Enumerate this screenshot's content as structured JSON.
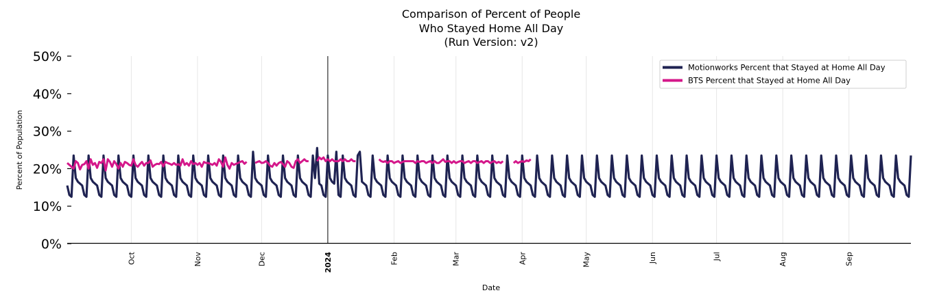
{
  "chart_data": {
    "type": "line",
    "title": "Comparison of Percent of People\nWho Stayed Home All Day\n(Run Version: v2)",
    "xlabel": "Date",
    "ylabel": "Percent of Population",
    "x_range": [
      "2023-09-01",
      "2024-09-30"
    ],
    "ylim": [
      0,
      50
    ],
    "y_ticks": [
      "0%",
      "10%",
      "20%",
      "30%",
      "40%",
      "50%"
    ],
    "x_ticks": [
      {
        "date": "2023-10-01",
        "label": "Oct",
        "bold": false
      },
      {
        "date": "2023-11-01",
        "label": "Nov",
        "bold": false
      },
      {
        "date": "2023-12-01",
        "label": "Dec",
        "bold": false
      },
      {
        "date": "2024-01-01",
        "label": "2024",
        "bold": true
      },
      {
        "date": "2024-02-01",
        "label": "Feb",
        "bold": false
      },
      {
        "date": "2024-03-01",
        "label": "Mar",
        "bold": false
      },
      {
        "date": "2024-04-01",
        "label": "Apr",
        "bold": false
      },
      {
        "date": "2024-05-01",
        "label": "May",
        "bold": false
      },
      {
        "date": "2024-06-01",
        "label": "Jun",
        "bold": false
      },
      {
        "date": "2024-07-01",
        "label": "Jul",
        "bold": false
      },
      {
        "date": "2024-08-01",
        "label": "Aug",
        "bold": false
      },
      {
        "date": "2024-09-01",
        "label": "Sep",
        "bold": false
      }
    ],
    "grid": "vertical",
    "year_marker": "2024-01-01",
    "legend_position": "top-right",
    "series": [
      {
        "name": "Motionworks Percent that Stayed at Home All Day",
        "color": "#1f2352",
        "start_date": "2023-09-01",
        "end_date": "2024-09-30",
        "weekly_pattern": [
          23.5,
          17.5,
          16.5,
          16.0,
          15.5,
          13.0,
          12.5
        ],
        "peak_dates": [
          "2023-11-27",
          "2023-12-27",
          "2024-01-05",
          "2024-01-16"
        ],
        "peak_values": [
          24.5,
          25.5,
          24.5,
          24.5
        ]
      },
      {
        "name": "BTS Percent that Stayed at Home All Day",
        "color": "#d4178a",
        "start_date": "2023-09-01",
        "end_date": "2024-04-07",
        "gaps": [
          [
            "2023-11-25",
            "2023-11-27"
          ],
          [
            "2023-12-24",
            "2023-12-26"
          ],
          [
            "2024-01-15",
            "2024-01-24"
          ],
          [
            "2024-03-24",
            "2024-03-27"
          ]
        ],
        "values": [
          21.5,
          21.0,
          20.5,
          20.0,
          22.0,
          21.5,
          19.8,
          21.0,
          21.2,
          22.0,
          20.0,
          22.5,
          21.0,
          21.5,
          20.2,
          21.8,
          21.5,
          22.5,
          19.5,
          22.5,
          21.8,
          20.5,
          22.0,
          21.2,
          20.0,
          21.5,
          20.5,
          21.8,
          21.5,
          21.0,
          20.8,
          22.5,
          21.0,
          20.5,
          21.2,
          21.8,
          20.8,
          21.5,
          21.5,
          22.2,
          20.5,
          21.0,
          21.3,
          21.2,
          21.8,
          20.6,
          21.8,
          21.5,
          21.3,
          21.0,
          21.5,
          21.0,
          21.2,
          20.8,
          22.5,
          21.0,
          21.5,
          20.8,
          22.0,
          21.2,
          21.5,
          21.0,
          21.5,
          20.5,
          21.8,
          21.5,
          21.5,
          21.3,
          21.0,
          21.5,
          20.8,
          22.5,
          21.8,
          20.5,
          23.0,
          21.0,
          20.0,
          21.5,
          21.0,
          21.3,
          21.5,
          21.8,
          22.0,
          21.3,
          21.8,
          21.0,
          21.5,
          22.0,
          21.5,
          21.8,
          22.0,
          21.5,
          21.6,
          22.0,
          21.5,
          20.8,
          20.5,
          21.5,
          20.8,
          21.5,
          21.8,
          21.2,
          20.5,
          22.0,
          21.5,
          20.5,
          20.2,
          22.0,
          22.5,
          21.5,
          22.0,
          22.5,
          22.0,
          22.0,
          21.5,
          21.8,
          22.5,
          22.0,
          23.0,
          22.5,
          23.0,
          22.0,
          22.5,
          22.0,
          22.5,
          22.0,
          22.0,
          22.0,
          22.5,
          22.0,
          22.5,
          22.0,
          22.0,
          22.5,
          22.0,
          22.0,
          22.5,
          22.0,
          22.0,
          21.5,
          21.5,
          22.0,
          21.5,
          21.8,
          22.0,
          22.0,
          22.5,
          22.0,
          21.8,
          22.0,
          21.5,
          22.0,
          22.0,
          21.5,
          21.8,
          22.0,
          21.5,
          21.8,
          22.0,
          22.0,
          22.0,
          22.0,
          22.0,
          21.5,
          22.0,
          21.8,
          22.0,
          22.0,
          21.5,
          21.8,
          22.0,
          21.5,
          22.0,
          21.5,
          21.5,
          22.0,
          22.5,
          21.8,
          22.0,
          22.0,
          21.5,
          22.0,
          21.5,
          21.8,
          22.0,
          22.0,
          21.5,
          21.8,
          22.0,
          21.5,
          22.0,
          22.0,
          21.5,
          21.8,
          22.0,
          21.5,
          22.0,
          22.0,
          21.5,
          21.8,
          22.0,
          21.5,
          21.8,
          21.5,
          22.0,
          22.5,
          21.8,
          22.0,
          22.0,
          21.5,
          22.0,
          21.5,
          21.8,
          22.0,
          21.8,
          22.2,
          22.0,
          22.5
        ]
      }
    ]
  }
}
